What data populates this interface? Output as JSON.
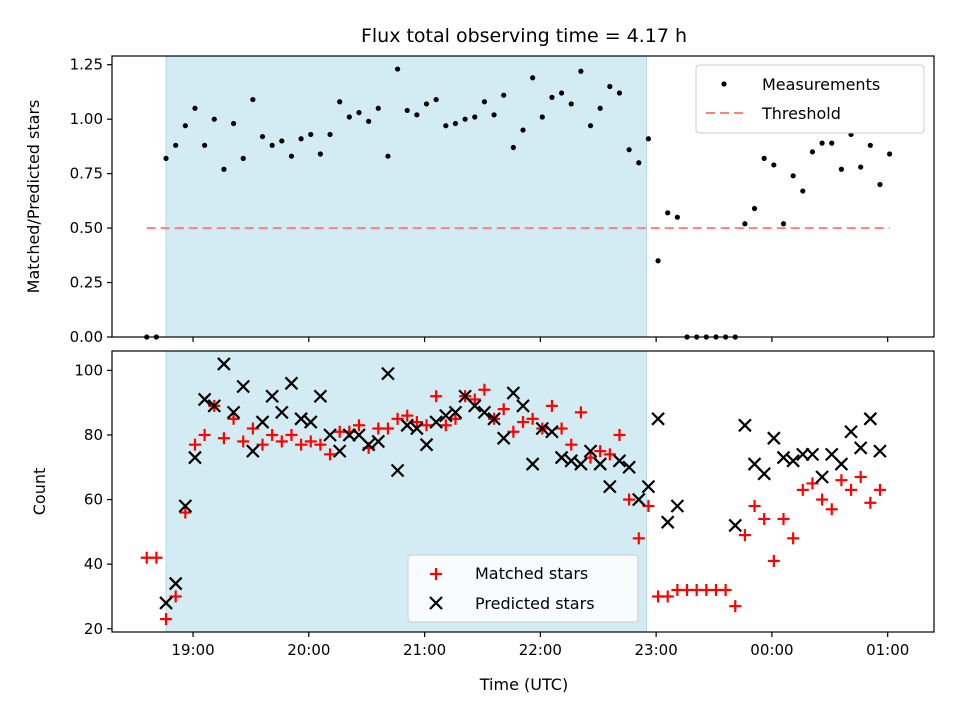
{
  "chart_data": [
    {
      "type": "scatter",
      "title": "Flux total observing time = 4.17 h",
      "xlabel": "",
      "ylabel": "Matched/Predicted stars",
      "xlim": [
        "18:18",
        "01:24"
      ],
      "ylim": [
        0,
        1.29
      ],
      "yticks": [
        "0.00",
        "0.25",
        "0.50",
        "0.75",
        "1.00",
        "1.25"
      ],
      "shaded_span": [
        "18:46",
        "22:55"
      ],
      "legend": {
        "placement": "top-right",
        "entries": [
          "Measurements",
          "Threshold"
        ]
      },
      "series": [
        {
          "name": "Measurements",
          "marker": "dot",
          "color": "#000000",
          "points": [
            [
              "18:36",
              0
            ],
            [
              "18:41",
              0
            ],
            [
              "18:46",
              0.82
            ],
            [
              "18:51",
              0.88
            ],
            [
              "18:56",
              0.97
            ],
            [
              "19:01",
              1.05
            ],
            [
              "19:06",
              0.88
            ],
            [
              "19:11",
              1.0
            ],
            [
              "19:16",
              0.77
            ],
            [
              "19:21",
              0.98
            ],
            [
              "19:26",
              0.82
            ],
            [
              "19:31",
              1.09
            ],
            [
              "19:36",
              0.92
            ],
            [
              "19:41",
              0.88
            ],
            [
              "19:46",
              0.9
            ],
            [
              "19:51",
              0.83
            ],
            [
              "19:56",
              0.91
            ],
            [
              "20:01",
              0.93
            ],
            [
              "20:06",
              0.84
            ],
            [
              "20:11",
              0.93
            ],
            [
              "20:16",
              1.08
            ],
            [
              "20:21",
              1.01
            ],
            [
              "20:26",
              1.03
            ],
            [
              "20:31",
              0.99
            ],
            [
              "20:36",
              1.05
            ],
            [
              "20:41",
              0.83
            ],
            [
              "20:46",
              1.23
            ],
            [
              "20:51",
              1.04
            ],
            [
              "20:56",
              1.02
            ],
            [
              "21:01",
              1.07
            ],
            [
              "21:06",
              1.09
            ],
            [
              "21:11",
              0.97
            ],
            [
              "21:16",
              0.98
            ],
            [
              "21:21",
              1.0
            ],
            [
              "21:26",
              1.01
            ],
            [
              "21:31",
              1.08
            ],
            [
              "21:36",
              1.02
            ],
            [
              "21:41",
              1.11
            ],
            [
              "21:46",
              0.87
            ],
            [
              "21:51",
              0.95
            ],
            [
              "21:56",
              1.19
            ],
            [
              "22:01",
              1.01
            ],
            [
              "22:06",
              1.1
            ],
            [
              "22:11",
              1.12
            ],
            [
              "22:16",
              1.07
            ],
            [
              "22:21",
              1.22
            ],
            [
              "22:26",
              0.97
            ],
            [
              "22:31",
              1.05
            ],
            [
              "22:36",
              1.15
            ],
            [
              "22:41",
              1.12
            ],
            [
              "22:46",
              0.86
            ],
            [
              "22:51",
              0.8
            ],
            [
              "22:56",
              0.91
            ],
            [
              "23:01",
              0.35
            ],
            [
              "23:06",
              0.57
            ],
            [
              "23:11",
              0.55
            ],
            [
              "23:16",
              0
            ],
            [
              "23:21",
              0
            ],
            [
              "23:26",
              0
            ],
            [
              "23:31",
              0
            ],
            [
              "23:36",
              0
            ],
            [
              "23:41",
              0
            ],
            [
              "23:46",
              0.52
            ],
            [
              "23:51",
              0.59
            ],
            [
              "23:56",
              0.82
            ],
            [
              "00:01",
              0.79
            ],
            [
              "00:06",
              0.52
            ],
            [
              "00:11",
              0.74
            ],
            [
              "00:16",
              0.67
            ],
            [
              "00:21",
              0.85
            ],
            [
              "00:26",
              0.89
            ],
            [
              "00:31",
              0.89
            ],
            [
              "00:36",
              0.77
            ],
            [
              "00:41",
              0.93
            ],
            [
              "00:46",
              0.78
            ],
            [
              "00:51",
              0.88
            ],
            [
              "00:56",
              0.7
            ],
            [
              "01:01",
              0.84
            ]
          ]
        },
        {
          "name": "Threshold",
          "type": "line",
          "style": "dashed",
          "color": "#ff8080",
          "x": [
            "18:36",
            "01:01"
          ],
          "y": [
            0.5,
            0.5
          ]
        }
      ]
    },
    {
      "type": "scatter",
      "title": "",
      "xlabel": "Time (UTC)",
      "ylabel": "Count",
      "xlim": [
        "18:18",
        "01:24"
      ],
      "ylim": [
        19,
        106
      ],
      "yticks": [
        "20",
        "40",
        "60",
        "80",
        "100"
      ],
      "xticks": [
        "19:00",
        "20:00",
        "21:00",
        "22:00",
        "23:00",
        "00:00",
        "01:00"
      ],
      "shaded_span": [
        "18:46",
        "22:55"
      ],
      "legend": {
        "placement": "bottom-center",
        "entries": [
          "Matched stars",
          "Predicted stars"
        ]
      },
      "series": [
        {
          "name": "Matched stars",
          "marker": "plus",
          "color": "#ff0000",
          "points": [
            [
              "18:36",
              42
            ],
            [
              "18:41",
              42
            ],
            [
              "18:46",
              23
            ],
            [
              "18:51",
              30
            ],
            [
              "18:56",
              56
            ],
            [
              "19:01",
              77
            ],
            [
              "19:06",
              80
            ],
            [
              "19:11",
              89
            ],
            [
              "19:16",
              79
            ],
            [
              "19:21",
              85
            ],
            [
              "19:26",
              78
            ],
            [
              "19:31",
              82
            ],
            [
              "19:36",
              77
            ],
            [
              "19:41",
              80
            ],
            [
              "19:46",
              78
            ],
            [
              "19:51",
              80
            ],
            [
              "19:56",
              77
            ],
            [
              "20:01",
              78
            ],
            [
              "20:06",
              77
            ],
            [
              "20:11",
              74
            ],
            [
              "20:16",
              81
            ],
            [
              "20:21",
              81
            ],
            [
              "20:26",
              83
            ],
            [
              "20:31",
              76
            ],
            [
              "20:36",
              82
            ],
            [
              "20:41",
              82
            ],
            [
              "20:46",
              85
            ],
            [
              "20:51",
              86
            ],
            [
              "20:56",
              84
            ],
            [
              "21:01",
              83
            ],
            [
              "21:06",
              92
            ],
            [
              "21:11",
              83
            ],
            [
              "21:16",
              85
            ],
            [
              "21:21",
              92
            ],
            [
              "21:26",
              91
            ],
            [
              "21:31",
              94
            ],
            [
              "21:36",
              85
            ],
            [
              "21:41",
              88
            ],
            [
              "21:46",
              81
            ],
            [
              "21:51",
              84
            ],
            [
              "21:56",
              85
            ],
            [
              "22:01",
              82
            ],
            [
              "22:06",
              89
            ],
            [
              "22:11",
              82
            ],
            [
              "22:16",
              77
            ],
            [
              "22:21",
              87
            ],
            [
              "22:26",
              73
            ],
            [
              "22:31",
              75
            ],
            [
              "22:36",
              74
            ],
            [
              "22:41",
              80
            ],
            [
              "22:46",
              60
            ],
            [
              "22:51",
              48
            ],
            [
              "22:56",
              58
            ],
            [
              "23:01",
              30
            ],
            [
              "23:06",
              30
            ],
            [
              "23:11",
              32
            ],
            [
              "23:16",
              32
            ],
            [
              "23:21",
              32
            ],
            [
              "23:26",
              32
            ],
            [
              "23:31",
              32
            ],
            [
              "23:36",
              32
            ],
            [
              "23:41",
              27
            ],
            [
              "23:46",
              49
            ],
            [
              "23:51",
              58
            ],
            [
              "23:56",
              54
            ],
            [
              "00:01",
              41
            ],
            [
              "00:06",
              54
            ],
            [
              "00:11",
              48
            ],
            [
              "00:16",
              63
            ],
            [
              "00:21",
              65
            ],
            [
              "00:26",
              60
            ],
            [
              "00:31",
              57
            ],
            [
              "00:36",
              66
            ],
            [
              "00:41",
              63
            ],
            [
              "00:46",
              67
            ],
            [
              "00:51",
              59
            ],
            [
              "00:56",
              63
            ]
          ]
        },
        {
          "name": "Predicted stars",
          "marker": "x",
          "color": "#000000",
          "points": [
            [
              "18:46",
              28
            ],
            [
              "18:51",
              34
            ],
            [
              "18:56",
              58
            ],
            [
              "19:01",
              73
            ],
            [
              "19:06",
              91
            ],
            [
              "19:11",
              89
            ],
            [
              "19:16",
              102
            ],
            [
              "19:21",
              87
            ],
            [
              "19:26",
              95
            ],
            [
              "19:31",
              75
            ],
            [
              "19:36",
              84
            ],
            [
              "19:41",
              92
            ],
            [
              "19:46",
              87
            ],
            [
              "19:51",
              96
            ],
            [
              "19:56",
              85
            ],
            [
              "20:01",
              84
            ],
            [
              "20:06",
              92
            ],
            [
              "20:11",
              80
            ],
            [
              "20:16",
              75
            ],
            [
              "20:21",
              80
            ],
            [
              "20:26",
              80
            ],
            [
              "20:31",
              77
            ],
            [
              "20:36",
              78
            ],
            [
              "20:41",
              99
            ],
            [
              "20:46",
              69
            ],
            [
              "20:51",
              83
            ],
            [
              "20:56",
              82
            ],
            [
              "21:01",
              77
            ],
            [
              "21:06",
              84
            ],
            [
              "21:11",
              86
            ],
            [
              "21:16",
              87
            ],
            [
              "21:21",
              92
            ],
            [
              "21:26",
              89
            ],
            [
              "21:31",
              87
            ],
            [
              "21:36",
              85
            ],
            [
              "21:41",
              79
            ],
            [
              "21:46",
              93
            ],
            [
              "21:51",
              89
            ],
            [
              "21:56",
              71
            ],
            [
              "22:01",
              82
            ],
            [
              "22:06",
              81
            ],
            [
              "22:11",
              73
            ],
            [
              "22:16",
              72
            ],
            [
              "22:21",
              71
            ],
            [
              "22:26",
              75
            ],
            [
              "22:31",
              71
            ],
            [
              "22:36",
              64
            ],
            [
              "22:41",
              72
            ],
            [
              "22:46",
              70
            ],
            [
              "22:51",
              60
            ],
            [
              "22:56",
              64
            ],
            [
              "23:01",
              85
            ],
            [
              "23:06",
              53
            ],
            [
              "23:11",
              58
            ],
            [
              "23:41",
              52
            ],
            [
              "23:46",
              83
            ],
            [
              "23:51",
              71
            ],
            [
              "23:56",
              68
            ],
            [
              "00:01",
              79
            ],
            [
              "00:06",
              73
            ],
            [
              "00:11",
              72
            ],
            [
              "00:16",
              74
            ],
            [
              "00:21",
              74
            ],
            [
              "00:26",
              67
            ],
            [
              "00:31",
              74
            ],
            [
              "00:36",
              71
            ],
            [
              "00:41",
              81
            ],
            [
              "00:46",
              76
            ],
            [
              "00:51",
              85
            ],
            [
              "00:56",
              75
            ]
          ]
        }
      ]
    }
  ],
  "colors": {
    "shade": "#d3ebf2",
    "matched": "#ff0000",
    "threshold": "#ff8080",
    "text": "#000000"
  }
}
